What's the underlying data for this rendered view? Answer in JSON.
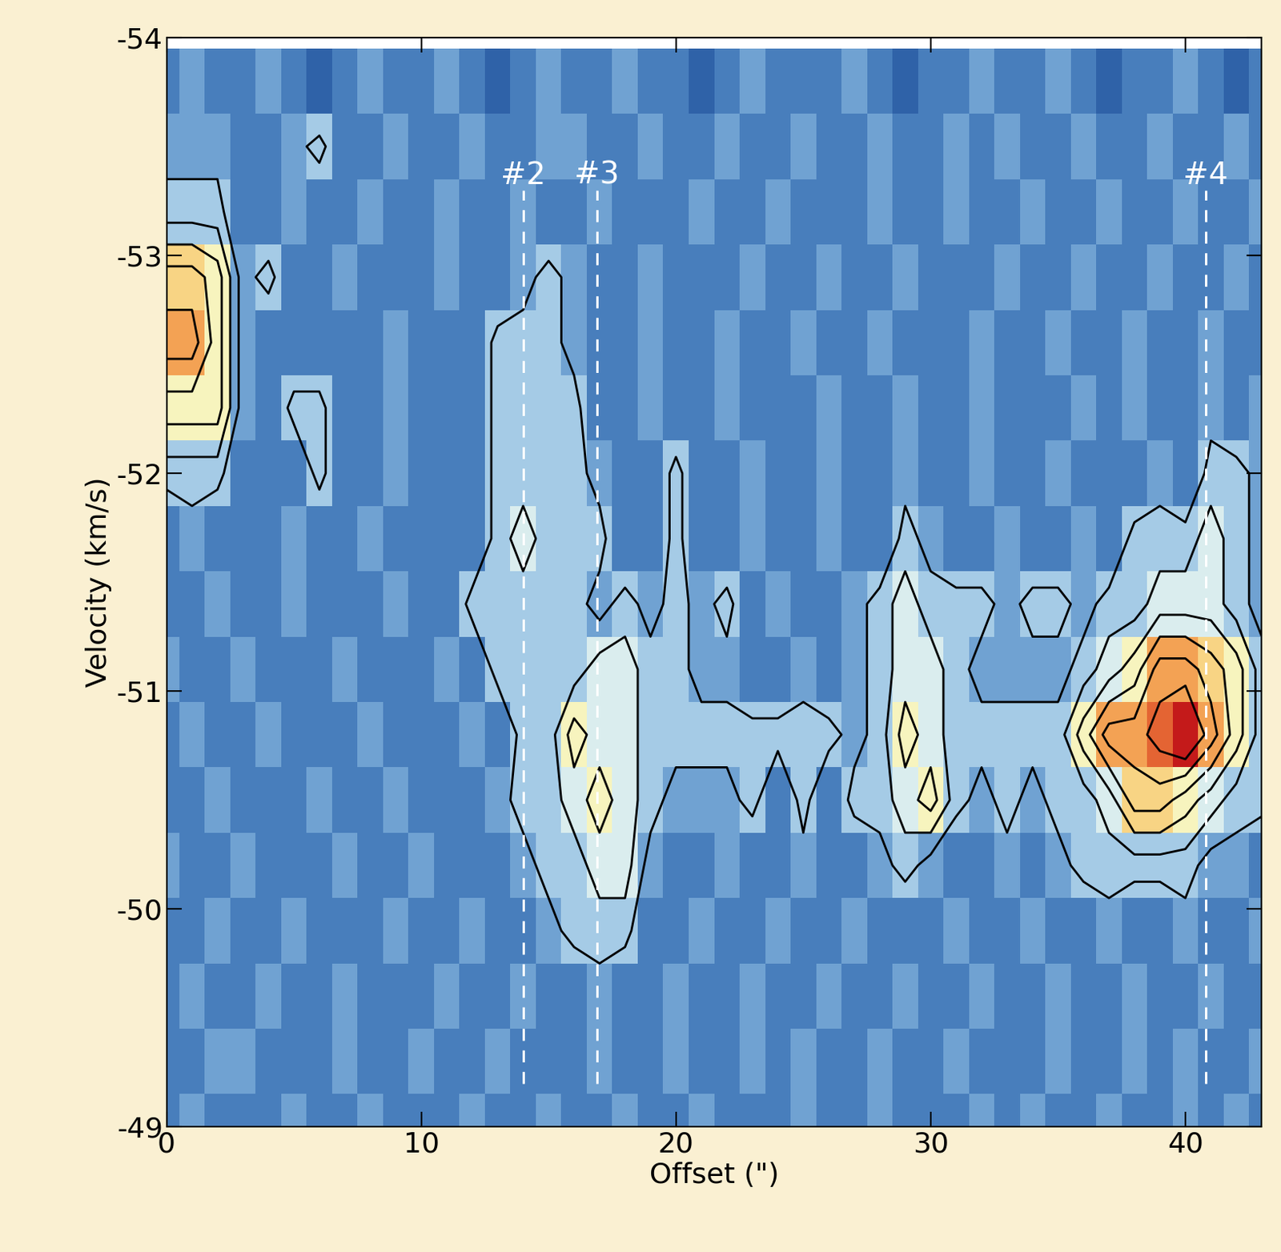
{
  "chart_data": {
    "type": "heatmap",
    "x_label": "Offset (\")",
    "y_label": "Velocity (km/s)",
    "xlim": [
      0,
      43
    ],
    "ylim": [
      -49,
      -54
    ],
    "xticks": [
      0,
      10,
      20,
      30,
      40
    ],
    "yticks": [
      -54,
      -53,
      -52,
      -51,
      -50,
      -49
    ],
    "offset": [
      0,
      1,
      2,
      3,
      4,
      5,
      6,
      7,
      8,
      9,
      10,
      11,
      12,
      13,
      14,
      15,
      16,
      17,
      18,
      19,
      20,
      21,
      22,
      23,
      24,
      25,
      26,
      27,
      28,
      29,
      30,
      31,
      32,
      33,
      34,
      35,
      36,
      37,
      38,
      39,
      40,
      41,
      42,
      43
    ],
    "velocity": [
      -53.8,
      -53.5,
      -53.2,
      -52.9,
      -52.6,
      -52.3,
      -52.0,
      -51.7,
      -51.4,
      -51.1,
      -50.8,
      -50.5,
      -50.2,
      -49.9,
      -49.6,
      -49.3,
      -49.0
    ],
    "cells": [
      [
        1,
        2,
        1,
        1,
        2,
        1,
        0,
        1,
        2,
        1,
        1,
        2,
        1,
        0,
        1,
        2,
        1,
        1,
        2,
        1,
        1,
        0,
        1,
        2,
        1,
        1,
        1,
        2,
        1,
        0,
        1,
        1,
        2,
        1,
        1,
        2,
        1,
        0,
        1,
        1,
        2,
        1,
        0,
        1
      ],
      [
        2,
        2,
        2,
        1,
        1,
        2,
        3,
        1,
        1,
        2,
        1,
        1,
        2,
        1,
        1,
        2,
        2,
        1,
        1,
        2,
        1,
        1,
        2,
        1,
        1,
        2,
        1,
        1,
        2,
        1,
        1,
        2,
        1,
        2,
        1,
        1,
        2,
        1,
        1,
        2,
        1,
        1,
        2,
        1
      ],
      [
        3,
        3,
        3,
        1,
        1,
        2,
        1,
        1,
        2,
        1,
        1,
        2,
        1,
        1,
        2,
        1,
        1,
        2,
        1,
        1,
        1,
        2,
        1,
        1,
        2,
        1,
        1,
        1,
        2,
        1,
        1,
        2,
        1,
        1,
        2,
        1,
        1,
        2,
        1,
        1,
        2,
        1,
        1,
        2
      ],
      [
        6,
        6,
        5,
        2,
        3,
        1,
        1,
        2,
        1,
        1,
        1,
        2,
        1,
        1,
        2,
        3,
        2,
        1,
        1,
        2,
        1,
        1,
        1,
        2,
        1,
        1,
        2,
        1,
        1,
        2,
        1,
        1,
        1,
        2,
        1,
        1,
        2,
        1,
        1,
        2,
        1,
        1,
        2,
        1
      ],
      [
        7,
        7,
        5,
        2,
        1,
        1,
        1,
        1,
        1,
        2,
        1,
        1,
        1,
        3,
        3,
        3,
        2,
        1,
        1,
        2,
        1,
        1,
        2,
        1,
        1,
        2,
        1,
        1,
        2,
        1,
        1,
        1,
        2,
        1,
        1,
        2,
        1,
        1,
        2,
        1,
        1,
        2,
        1,
        1
      ],
      [
        5,
        5,
        5,
        2,
        1,
        3,
        3,
        1,
        1,
        2,
        1,
        1,
        1,
        3,
        3,
        3,
        3,
        1,
        1,
        2,
        1,
        1,
        2,
        1,
        1,
        1,
        2,
        1,
        1,
        2,
        1,
        1,
        2,
        1,
        1,
        1,
        2,
        1,
        2,
        1,
        1,
        2,
        1,
        2
      ],
      [
        3,
        3,
        3,
        1,
        1,
        1,
        3,
        1,
        1,
        2,
        1,
        1,
        1,
        3,
        3,
        3,
        3,
        2,
        1,
        1,
        3,
        1,
        1,
        2,
        1,
        1,
        2,
        1,
        1,
        2,
        1,
        1,
        2,
        1,
        1,
        2,
        1,
        1,
        1,
        2,
        1,
        3,
        3,
        2
      ],
      [
        1,
        2,
        1,
        1,
        1,
        2,
        1,
        1,
        2,
        1,
        1,
        1,
        1,
        3,
        4,
        3,
        3,
        3,
        1,
        1,
        3,
        1,
        1,
        2,
        1,
        1,
        2,
        1,
        1,
        3,
        2,
        1,
        1,
        2,
        1,
        1,
        2,
        1,
        3,
        3,
        3,
        4,
        3,
        2
      ],
      [
        1,
        1,
        2,
        1,
        1,
        2,
        1,
        1,
        1,
        2,
        1,
        1,
        3,
        3,
        3,
        3,
        3,
        2,
        3,
        2,
        3,
        2,
        3,
        1,
        2,
        1,
        1,
        2,
        3,
        4,
        3,
        3,
        3,
        2,
        3,
        3,
        2,
        3,
        3,
        4,
        4,
        4,
        3,
        2
      ],
      [
        2,
        1,
        1,
        2,
        1,
        1,
        1,
        2,
        1,
        1,
        1,
        2,
        1,
        3,
        3,
        3,
        3,
        4,
        4,
        3,
        3,
        2,
        2,
        1,
        1,
        2,
        1,
        2,
        3,
        4,
        4,
        3,
        2,
        2,
        2,
        2,
        3,
        4,
        5,
        7,
        7,
        6,
        5,
        3
      ],
      [
        1,
        2,
        1,
        1,
        2,
        1,
        1,
        1,
        2,
        1,
        1,
        1,
        2,
        1,
        3,
        3,
        5,
        4,
        4,
        3,
        3,
        3,
        3,
        3,
        3,
        3,
        3,
        2,
        3,
        5,
        4,
        3,
        3,
        3,
        3,
        3,
        5,
        7,
        7,
        8,
        9,
        7,
        5,
        3
      ],
      [
        1,
        1,
        2,
        1,
        1,
        1,
        2,
        1,
        1,
        2,
        1,
        1,
        1,
        2,
        3,
        3,
        4,
        5,
        4,
        3,
        2,
        2,
        2,
        3,
        1,
        3,
        1,
        3,
        3,
        4,
        5,
        3,
        2,
        3,
        2,
        3,
        3,
        4,
        6,
        6,
        5,
        4,
        3,
        3
      ],
      [
        2,
        1,
        1,
        2,
        1,
        1,
        1,
        2,
        1,
        1,
        2,
        1,
        1,
        1,
        2,
        3,
        3,
        4,
        4,
        2,
        1,
        1,
        2,
        1,
        1,
        2,
        1,
        1,
        2,
        3,
        2,
        1,
        1,
        2,
        1,
        2,
        3,
        3,
        3,
        3,
        3,
        2,
        2,
        1
      ],
      [
        1,
        1,
        2,
        1,
        1,
        2,
        1,
        1,
        1,
        2,
        1,
        1,
        2,
        1,
        1,
        2,
        3,
        3,
        3,
        1,
        1,
        2,
        1,
        1,
        2,
        1,
        1,
        2,
        1,
        1,
        1,
        2,
        1,
        1,
        2,
        1,
        1,
        2,
        1,
        1,
        2,
        1,
        1,
        2
      ],
      [
        1,
        2,
        1,
        1,
        2,
        1,
        1,
        2,
        1,
        1,
        1,
        2,
        1,
        1,
        2,
        1,
        1,
        2,
        1,
        1,
        2,
        1,
        1,
        2,
        1,
        1,
        2,
        1,
        1,
        2,
        1,
        1,
        2,
        1,
        1,
        2,
        1,
        1,
        2,
        1,
        1,
        2,
        1,
        1
      ],
      [
        1,
        1,
        2,
        2,
        1,
        1,
        1,
        2,
        1,
        1,
        2,
        1,
        1,
        2,
        1,
        1,
        1,
        2,
        1,
        1,
        2,
        1,
        1,
        2,
        1,
        2,
        1,
        1,
        2,
        1,
        1,
        2,
        1,
        1,
        1,
        2,
        1,
        1,
        2,
        1,
        2,
        1,
        1,
        2
      ],
      [
        1,
        2,
        1,
        1,
        1,
        2,
        1,
        1,
        2,
        1,
        1,
        1,
        2,
        1,
        1,
        2,
        1,
        1,
        2,
        1,
        1,
        2,
        1,
        1,
        1,
        2,
        1,
        1,
        2,
        1,
        1,
        1,
        2,
        1,
        2,
        1,
        1,
        2,
        1,
        1,
        2,
        1,
        2,
        1
      ]
    ],
    "zlim": [
      0,
      9
    ],
    "contour_levels": [
      2.5,
      3.5,
      4.5,
      5.5,
      6.5,
      7.5
    ],
    "annotations": [
      {
        "text": "#2",
        "x": 14.0,
        "y": [
          -49.2,
          -53.3
        ]
      },
      {
        "text": "#3",
        "x": 16.9,
        "y": [
          -49.2,
          -53.3
        ]
      },
      {
        "text": "#4",
        "x": 40.8,
        "y": [
          -49.2,
          -53.3
        ]
      }
    ]
  }
}
